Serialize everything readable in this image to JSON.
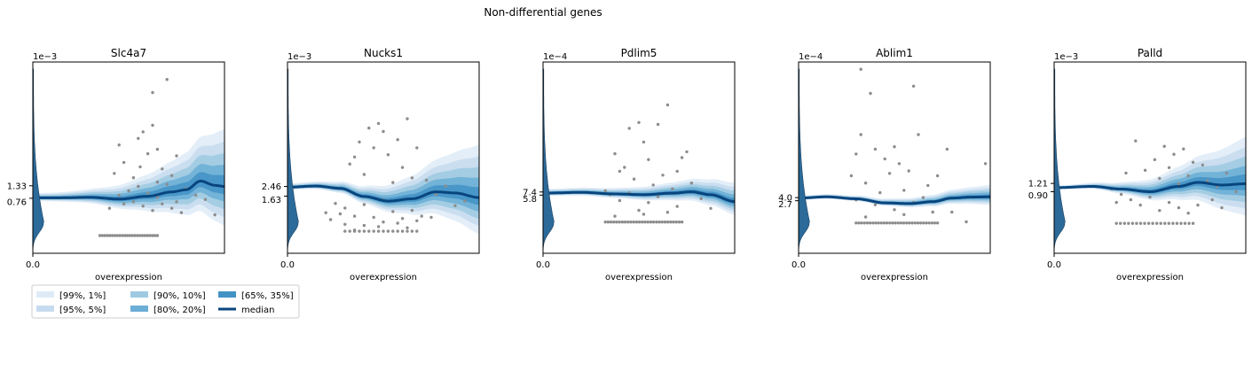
{
  "figure": {
    "suptitle": "Non-differential genes"
  },
  "legend": {
    "entries": [
      {
        "label": "[99%, 1%]",
        "color": "#deebf7"
      },
      {
        "label": "[95%, 5%]",
        "color": "#c6dbef"
      },
      {
        "label": "[90%, 10%]",
        "color": "#9ecae1"
      },
      {
        "label": "[80%, 20%]",
        "color": "#6baed6"
      },
      {
        "label": "[65%, 35%]",
        "color": "#4292c6"
      },
      {
        "label": "median",
        "color": "#08457e"
      }
    ]
  },
  "colors": {
    "points": "#8c8c8c",
    "violin": "#2b6a99",
    "median": "#08457e",
    "bands": [
      "#deebf7",
      "#c6dbef",
      "#9ecae1",
      "#6baed6",
      "#4292c6"
    ]
  },
  "chart_data": [
    {
      "type": "scatter",
      "title": "Slc4a7",
      "xlabel": "overexpression",
      "x_tick_labels": [
        "0.0"
      ],
      "y_offset_label": "1e−3",
      "y_tick_labels": [
        "0.76",
        "1.33"
      ],
      "y_ticks": [
        0.76,
        1.33
      ],
      "ylim": [
        -1.76,
        7.0
      ],
      "xlim": [
        -1.0,
        1.0
      ],
      "median_curve": {
        "x": [
          -0.75,
          -0.4,
          -0.1,
          0.2,
          0.45,
          0.6,
          0.75,
          0.9,
          1.0
        ],
        "y": [
          0.78,
          0.8,
          0.72,
          0.85,
          1.05,
          1.15,
          1.55,
          1.35,
          1.3
        ]
      },
      "band_spread_start": 0.2,
      "band_spread_end": 2.4,
      "points": [
        [
          -0.15,
          1.9
        ],
        [
          -0.05,
          2.4
        ],
        [
          0.05,
          1.7
        ],
        [
          0.12,
          2.2
        ],
        [
          0.25,
          5.6
        ],
        [
          0.3,
          1.5
        ],
        [
          0.35,
          2.1
        ],
        [
          0.4,
          6.2
        ],
        [
          0.45,
          1.8
        ],
        [
          0.5,
          2.7
        ],
        [
          0.3,
          3.0
        ],
        [
          0.1,
          3.5
        ],
        [
          -0.1,
          3.2
        ],
        [
          0.2,
          2.8
        ],
        [
          0.05,
          0.6
        ],
        [
          0.15,
          0.4
        ],
        [
          0.25,
          0.2
        ],
        [
          0.35,
          0.5
        ],
        [
          0.45,
          0.3
        ],
        [
          0.55,
          0.1
        ],
        [
          -0.05,
          0.5
        ],
        [
          -0.2,
          0.3
        ],
        [
          0.6,
          1.2
        ],
        [
          0.7,
          0.9
        ],
        [
          0.8,
          0.7
        ],
        [
          0.9,
          0.0
        ],
        [
          0.0,
          1.1
        ],
        [
          0.1,
          1.3
        ],
        [
          -0.1,
          0.9
        ],
        [
          0.2,
          1.0
        ],
        [
          0.3,
          0.8
        ],
        [
          0.4,
          1.4
        ],
        [
          0.5,
          0.6
        ],
        [
          0.25,
          4.1
        ],
        [
          0.15,
          3.8
        ]
      ],
      "floor_points": {
        "y": -0.95,
        "x_from": -0.3,
        "x_to": 0.3,
        "count": 24
      }
    },
    {
      "type": "scatter",
      "title": "Nucks1",
      "xlabel": "overexpression",
      "x_tick_labels": [
        "0.0"
      ],
      "y_offset_label": "1e−3",
      "y_tick_labels": [
        "1.63",
        "2.46"
      ],
      "y_ticks": [
        1.63,
        2.46
      ],
      "ylim": [
        -3.3,
        13.2
      ],
      "xlim": [
        -1.0,
        1.0
      ],
      "median_curve": {
        "x": [
          -1.0,
          -0.7,
          -0.45,
          -0.2,
          0.05,
          0.3,
          0.55,
          0.75,
          1.0
        ],
        "y": [
          2.4,
          2.5,
          2.3,
          1.6,
          1.2,
          1.4,
          2.0,
          1.9,
          1.5
        ]
      },
      "band_spread_start": 0.3,
      "band_spread_end": 4.2,
      "points": [
        [
          -0.6,
          0.2
        ],
        [
          -0.5,
          1.0
        ],
        [
          -0.4,
          0.6
        ],
        [
          -0.3,
          5.0
        ],
        [
          -0.25,
          6.3
        ],
        [
          -0.2,
          3.5
        ],
        [
          -0.1,
          5.8
        ],
        [
          -0.05,
          7.9
        ],
        [
          0.0,
          7.2
        ],
        [
          0.1,
          2.8
        ],
        [
          0.15,
          6.5
        ],
        [
          0.2,
          4.1
        ],
        [
          0.25,
          8.3
        ],
        [
          0.3,
          3.2
        ],
        [
          -0.35,
          4.4
        ],
        [
          -0.15,
          7.5
        ],
        [
          0.05,
          5.2
        ],
        [
          0.35,
          5.8
        ],
        [
          0.45,
          3.0
        ],
        [
          0.55,
          1.8
        ],
        [
          0.65,
          2.5
        ],
        [
          0.75,
          0.8
        ],
        [
          0.85,
          1.2
        ],
        [
          -0.45,
          0.1
        ],
        [
          -0.55,
          -0.4
        ],
        [
          -0.3,
          -0.1
        ],
        [
          -0.1,
          -0.2
        ],
        [
          0.1,
          0.3
        ],
        [
          0.2,
          -0.3
        ],
        [
          0.3,
          0.4
        ],
        [
          0.4,
          -0.1
        ],
        [
          -0.2,
          0.9
        ],
        [
          0.0,
          1.3
        ],
        [
          -0.4,
          -0.8
        ],
        [
          -0.2,
          -0.9
        ],
        [
          0.0,
          -0.6
        ],
        [
          0.15,
          -0.7
        ],
        [
          0.35,
          -0.5
        ],
        [
          0.5,
          -0.2
        ],
        [
          -0.05,
          -1.0
        ],
        [
          0.25,
          -1.1
        ],
        [
          -0.3,
          -1.3
        ]
      ],
      "floor_points": {
        "y": -1.4,
        "x_from": -0.4,
        "x_to": 0.35,
        "count": 16
      }
    },
    {
      "type": "scatter",
      "title": "Pdlim5",
      "xlabel": "overexpression",
      "x_tick_labels": [
        "0.0"
      ],
      "y_offset_label": "1e−4",
      "y_tick_labels": [
        "5.8",
        "7.4"
      ],
      "y_ticks": [
        5.8,
        7.4
      ],
      "ylim": [
        -24,
        74
      ],
      "xlim": [
        -1.0,
        1.0
      ],
      "median_curve": {
        "x": [
          -1.0,
          -0.6,
          -0.25,
          0.05,
          0.35,
          0.55,
          0.75,
          1.0
        ],
        "y": [
          6.8,
          7.2,
          6.4,
          6.0,
          6.8,
          7.5,
          6.0,
          2.5
        ]
      },
      "band_spread_start": 2.0,
      "band_spread_end": 9.0,
      "points": [
        [
          -0.25,
          27
        ],
        [
          -0.2,
          18
        ],
        [
          -0.1,
          40
        ],
        [
          0.0,
          43
        ],
        [
          0.1,
          24
        ],
        [
          0.2,
          42
        ],
        [
          0.3,
          52
        ],
        [
          0.4,
          18
        ],
        [
          0.45,
          25
        ],
        [
          -0.15,
          20
        ],
        [
          -0.05,
          14
        ],
        [
          0.05,
          33
        ],
        [
          0.15,
          11
        ],
        [
          0.25,
          16
        ],
        [
          0.35,
          9
        ],
        [
          -0.3,
          6
        ],
        [
          -0.2,
          3
        ],
        [
          -0.1,
          7
        ],
        [
          0.0,
          -2
        ],
        [
          0.1,
          2
        ],
        [
          0.2,
          5
        ],
        [
          0.3,
          -3
        ],
        [
          0.4,
          0
        ],
        [
          -0.25,
          -5
        ],
        [
          0.05,
          -4
        ],
        [
          0.55,
          12
        ],
        [
          0.65,
          4
        ],
        [
          0.75,
          -1
        ],
        [
          -0.35,
          8
        ],
        [
          0.5,
          28
        ]
      ],
      "floor_points": {
        "y": -8,
        "x_from": -0.35,
        "x_to": 0.45,
        "count": 28
      }
    },
    {
      "type": "scatter",
      "title": "Ablim1",
      "xlabel": "overexpression",
      "x_tick_labels": [
        "0.0"
      ],
      "y_offset_label": "1e−4",
      "y_tick_labels": [
        "2.7",
        "4.0"
      ],
      "y_ticks": [
        2.7,
        4.0
      ],
      "ylim": [
        -19,
        60
      ],
      "xlim": [
        -1.0,
        1.0
      ],
      "median_curve": {
        "x": [
          -1.0,
          -0.7,
          -0.4,
          -0.1,
          0.15,
          0.4,
          0.6,
          0.8,
          1.0
        ],
        "y": [
          3.8,
          4.3,
          3.5,
          1.8,
          1.5,
          2.3,
          3.8,
          4.2,
          4.3
        ]
      },
      "band_spread_start": 1.0,
      "band_spread_end": 4.5,
      "points": [
        [
          -0.35,
          57
        ],
        [
          -0.25,
          47
        ],
        [
          0.2,
          50
        ],
        [
          -0.35,
          30
        ],
        [
          -0.4,
          22
        ],
        [
          -0.2,
          24
        ],
        [
          -0.1,
          20
        ],
        [
          0.0,
          25
        ],
        [
          0.05,
          18
        ],
        [
          0.15,
          15
        ],
        [
          0.25,
          30
        ],
        [
          0.35,
          9
        ],
        [
          0.45,
          13
        ],
        [
          -0.45,
          13
        ],
        [
          -0.3,
          10
        ],
        [
          -0.15,
          6
        ],
        [
          0.1,
          7
        ],
        [
          0.3,
          4
        ],
        [
          -0.05,
          14
        ],
        [
          0.55,
          24
        ],
        [
          0.95,
          18
        ],
        [
          -0.4,
          3
        ],
        [
          -0.2,
          1
        ],
        [
          0.0,
          -1
        ],
        [
          0.2,
          2
        ],
        [
          0.4,
          -2
        ],
        [
          -0.3,
          -4
        ],
        [
          0.1,
          -3
        ],
        [
          0.6,
          -2
        ],
        [
          0.75,
          -6
        ]
      ],
      "floor_points": {
        "y": -6.5,
        "x_from": -0.4,
        "x_to": 0.45,
        "count": 30
      }
    },
    {
      "type": "scatter",
      "title": "Palld",
      "xlabel": "overexpression",
      "x_tick_labels": [
        "0.0"
      ],
      "y_offset_label": "1e−3",
      "y_tick_labels": [
        "0.90",
        "1.21"
      ],
      "y_ticks": [
        0.9,
        1.21
      ],
      "ylim": [
        -1.4,
        5.75
      ],
      "xlim": [
        -1.0,
        1.0
      ],
      "median_curve": {
        "x": [
          -1.0,
          -0.6,
          -0.3,
          0.0,
          0.3,
          0.5,
          0.75,
          1.0
        ],
        "y": [
          1.05,
          1.1,
          1.0,
          0.9,
          1.1,
          1.25,
          1.15,
          1.2
        ]
      },
      "band_spread_start": 0.08,
      "band_spread_end": 1.6,
      "points": [
        [
          -0.15,
          2.8
        ],
        [
          0.05,
          2.1
        ],
        [
          0.15,
          2.6
        ],
        [
          0.25,
          2.3
        ],
        [
          0.35,
          2.5
        ],
        [
          0.45,
          2.0
        ],
        [
          -0.25,
          1.6
        ],
        [
          -0.05,
          1.7
        ],
        [
          0.1,
          1.4
        ],
        [
          0.2,
          1.8
        ],
        [
          0.3,
          1.2
        ],
        [
          0.4,
          1.5
        ],
        [
          0.55,
          1.9
        ],
        [
          0.6,
          1.3
        ],
        [
          0.7,
          1.1
        ],
        [
          0.8,
          1.6
        ],
        [
          0.9,
          0.9
        ],
        [
          -0.3,
          0.8
        ],
        [
          -0.2,
          0.6
        ],
        [
          -0.1,
          0.4
        ],
        [
          0.0,
          0.7
        ],
        [
          0.1,
          0.2
        ],
        [
          0.2,
          0.5
        ],
        [
          0.3,
          0.3
        ],
        [
          0.4,
          0.1
        ],
        [
          -0.4,
          1.0
        ],
        [
          -0.35,
          0.5
        ],
        [
          0.5,
          0.4
        ],
        [
          0.65,
          0.6
        ],
        [
          0.75,
          0.3
        ]
      ],
      "floor_points": {
        "y": -0.28,
        "x_from": -0.35,
        "x_to": 0.45,
        "count": 20
      }
    }
  ]
}
